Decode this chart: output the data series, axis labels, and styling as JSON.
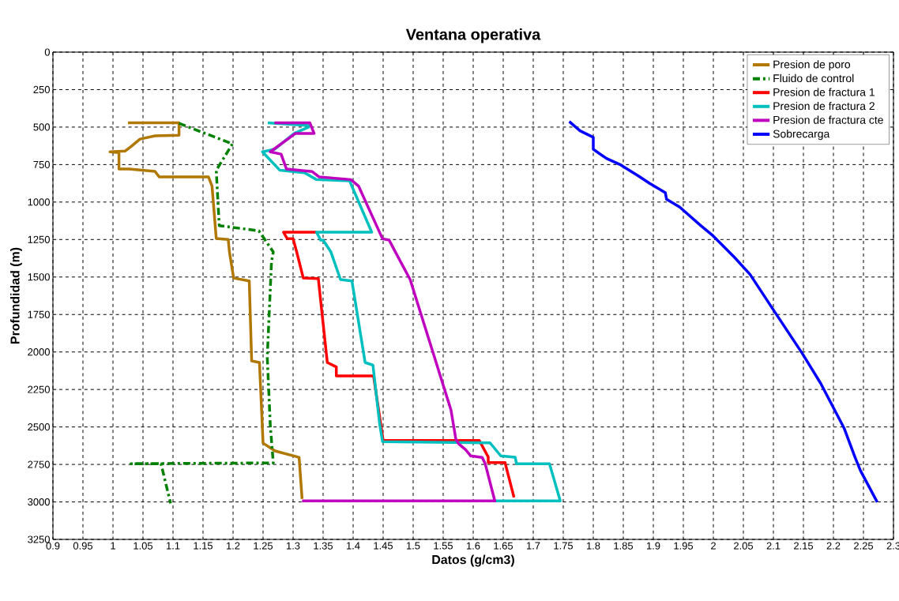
{
  "chart_data": {
    "type": "line",
    "title": "Ventana operativa",
    "xlabel": "Datos (g/cm3)",
    "ylabel": "Profundidad (m)",
    "xlim": [
      0.9,
      2.3
    ],
    "ylim": [
      3250,
      0
    ],
    "xticks": [
      0.9,
      0.95,
      1,
      1.05,
      1.1,
      1.15,
      1.2,
      1.25,
      1.3,
      1.35,
      1.4,
      1.45,
      1.5,
      1.55,
      1.6,
      1.65,
      1.7,
      1.75,
      1.8,
      1.85,
      1.9,
      1.95,
      2,
      2.05,
      2.1,
      2.15,
      2.2,
      2.25,
      2.3
    ],
    "yticks": [
      0,
      250,
      500,
      750,
      1000,
      1250,
      1500,
      1750,
      2000,
      2250,
      2500,
      2750,
      3000,
      3250
    ],
    "grid": true,
    "legend": "top right",
    "marker": "none",
    "series": [
      {
        "name": "Presion de poro",
        "color": "#b07800",
        "line_style": "solid",
        "x": [
          1.025,
          1.11,
          1.11,
          1.07,
          1.045,
          1.03,
          1.02,
          0.995,
          1.01,
          1.01,
          1.027,
          1.07,
          1.077,
          1.159,
          1.165,
          1.172,
          1.192,
          1.194,
          1.201,
          1.227,
          1.231,
          1.244,
          1.25,
          1.27,
          1.31,
          1.315
        ],
        "values": [
          472,
          472,
          555,
          558,
          580,
          630,
          660,
          665,
          670,
          780,
          780,
          795,
          832,
          832,
          893,
          1243,
          1250,
          1333,
          1507,
          1526,
          2060,
          2070,
          2608,
          2660,
          2703,
          2980
        ]
      },
      {
        "name": "Fluido de control",
        "color": "#008000",
        "line_style": "dashdot",
        "x": [
          1.11,
          1.199,
          1.172,
          1.177,
          1.243,
          1.267,
          1.264,
          1.257,
          1.262,
          1.267,
          1.03,
          1.08,
          1.096
        ],
        "values": [
          475,
          612,
          788,
          1157,
          1192,
          1333,
          1400,
          2035,
          2488,
          2740,
          2745,
          2745,
          3010
        ]
      },
      {
        "name": "Presion de fractura 1",
        "color": "#ff0000",
        "line_style": "solid",
        "x": [
          1.339,
          1.284,
          1.29,
          1.3,
          1.306,
          1.317,
          1.342,
          1.357,
          1.372,
          1.372,
          1.434,
          1.45,
          1.61,
          1.625,
          1.625,
          1.653,
          1.668
        ],
        "values": [
          1201,
          1201,
          1243,
          1245,
          1333,
          1507,
          1510,
          2070,
          2100,
          2159,
          2159,
          2590,
          2590,
          2700,
          2738,
          2738,
          2970
        ]
      },
      {
        "name": "Presion de fractura 2",
        "color": "#00bfbf",
        "line_style": "solid",
        "x": [
          1.258,
          1.326,
          1.326,
          1.302,
          1.269,
          1.249,
          1.278,
          1.319,
          1.339,
          1.394,
          1.431,
          1.339,
          1.346,
          1.35,
          1.363,
          1.379,
          1.398,
          1.42,
          1.433,
          1.444,
          1.449,
          1.628,
          1.646,
          1.67,
          1.672,
          1.727,
          1.745,
          1.636
        ],
        "values": [
          472,
          490,
          500,
          542,
          648,
          665,
          788,
          805,
          850,
          858,
          1201,
          1201,
          1254,
          1254,
          1333,
          1517,
          1526,
          2070,
          2088,
          2475,
          2598,
          2606,
          2693,
          2702,
          2745,
          2745,
          2993,
          2993
        ]
      },
      {
        "name": "Presion de fractura cte",
        "color": "#bf00bf",
        "line_style": "solid",
        "x": [
          1.269,
          1.328,
          1.335,
          1.304,
          1.262,
          1.28,
          1.289,
          1.332,
          1.343,
          1.396,
          1.409,
          1.449,
          1.46,
          1.482,
          1.495,
          1.53,
          1.563,
          1.571,
          1.576,
          1.587,
          1.596,
          1.615,
          1.62,
          1.636,
          1.315
        ],
        "values": [
          472,
          472,
          542,
          542,
          665,
          680,
          780,
          797,
          832,
          850,
          893,
          1245,
          1254,
          1420,
          1517,
          1965,
          2387,
          2580,
          2613,
          2650,
          2693,
          2703,
          2745,
          2993,
          2993
        ]
      },
      {
        "name": "Sobrecarga",
        "color": "#0000ff",
        "line_style": "solid",
        "x": [
          1.76,
          1.778,
          1.8,
          1.8,
          1.822,
          1.846,
          1.874,
          1.894,
          1.92,
          1.922,
          1.944,
          1.979,
          2.0,
          2.035,
          2.061,
          2.1,
          2.148,
          2.179,
          2.218,
          2.236,
          2.245,
          2.273
        ],
        "values": [
          463,
          525,
          568,
          648,
          709,
          753,
          823,
          876,
          937,
          981,
          1034,
          1157,
          1227,
          1368,
          1482,
          1719,
          2009,
          2211,
          2510,
          2703,
          2791,
          3002
        ]
      }
    ]
  }
}
